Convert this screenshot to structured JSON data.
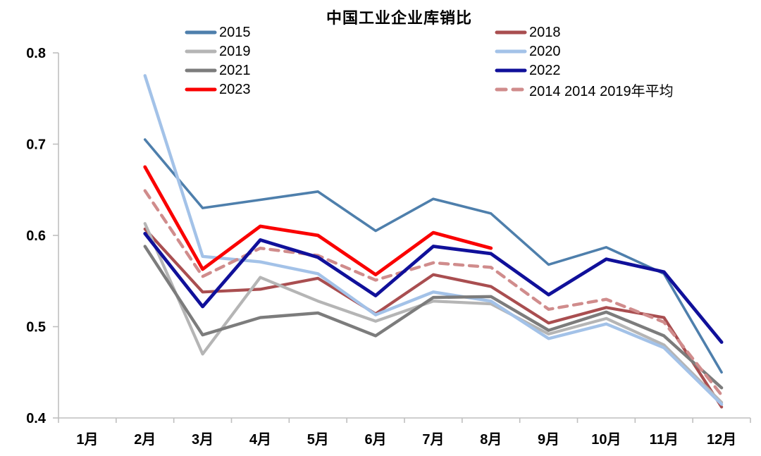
{
  "chart_data": {
    "type": "line",
    "title": "中国工业企业库销比",
    "categories": [
      "1月",
      "2月",
      "3月",
      "4月",
      "5月",
      "6月",
      "7月",
      "8月",
      "9月",
      "10月",
      "11月",
      "12月"
    ],
    "xlabel": "",
    "ylabel": "",
    "ylim": [
      0.4,
      0.8
    ],
    "yticks": [
      0.8,
      0.7,
      0.6,
      0.5,
      0.4
    ],
    "ytick_labels": [
      "0.8",
      "0.7",
      "0.6",
      "0.5",
      "0.4"
    ],
    "grid": false,
    "legend_position": "top-two-columns",
    "axis_color": "#BFBFBF",
    "tick_label_color": "#000000",
    "series": [
      {
        "name": "2015",
        "color": "#4E7FAC",
        "dash": false,
        "width": 3.6,
        "legend_col": 0,
        "legend_row": 0,
        "values": [
          null,
          0.705,
          0.63,
          0.639,
          0.648,
          0.605,
          0.64,
          0.624,
          0.568,
          0.587,
          0.558,
          0.45
        ]
      },
      {
        "name": "2018",
        "color": "#A94E50",
        "dash": false,
        "width": 4.2,
        "legend_col": 1,
        "legend_row": 0,
        "values": [
          null,
          0.607,
          0.538,
          0.541,
          0.553,
          0.514,
          0.557,
          0.544,
          0.504,
          0.521,
          0.51,
          0.412
        ]
      },
      {
        "name": "2019",
        "color": "#B5B5B5",
        "dash": false,
        "width": 4.2,
        "legend_col": 0,
        "legend_row": 1,
        "values": [
          null,
          0.613,
          0.47,
          0.554,
          0.528,
          0.506,
          0.528,
          0.525,
          0.492,
          0.509,
          0.48,
          0.417
        ]
      },
      {
        "name": "2020",
        "color": "#A3C2E8",
        "dash": false,
        "width": 4.4,
        "legend_col": 1,
        "legend_row": 1,
        "values": [
          null,
          0.775,
          0.577,
          0.571,
          0.558,
          0.513,
          0.538,
          0.528,
          0.487,
          0.503,
          0.477,
          0.415
        ]
      },
      {
        "name": "2021",
        "color": "#7C7C7C",
        "dash": false,
        "width": 4.4,
        "legend_col": 0,
        "legend_row": 2,
        "values": [
          null,
          0.588,
          0.491,
          0.51,
          0.515,
          0.49,
          0.532,
          0.533,
          0.496,
          0.516,
          0.49,
          0.433
        ]
      },
      {
        "name": "2014 2014 2019年平均",
        "color": "#D08C8C",
        "dash": true,
        "width": 4.4,
        "legend_col": 1,
        "legend_row": 3,
        "values": [
          null,
          0.649,
          0.555,
          0.586,
          0.578,
          0.551,
          0.57,
          0.565,
          0.519,
          0.53,
          0.505,
          0.425
        ]
      },
      {
        "name": "2022",
        "color": "#10109A",
        "dash": false,
        "width": 4.8,
        "legend_col": 1,
        "legend_row": 2,
        "values": [
          null,
          0.602,
          0.522,
          0.595,
          0.576,
          0.534,
          0.588,
          0.58,
          0.535,
          0.574,
          0.56,
          0.483
        ]
      },
      {
        "name": "2023",
        "color": "#FA0000",
        "dash": false,
        "width": 4.8,
        "legend_col": 0,
        "legend_row": 3,
        "values": [
          null,
          0.675,
          0.563,
          0.61,
          0.6,
          0.557,
          0.603,
          0.586,
          null,
          null,
          null,
          null
        ]
      }
    ]
  }
}
